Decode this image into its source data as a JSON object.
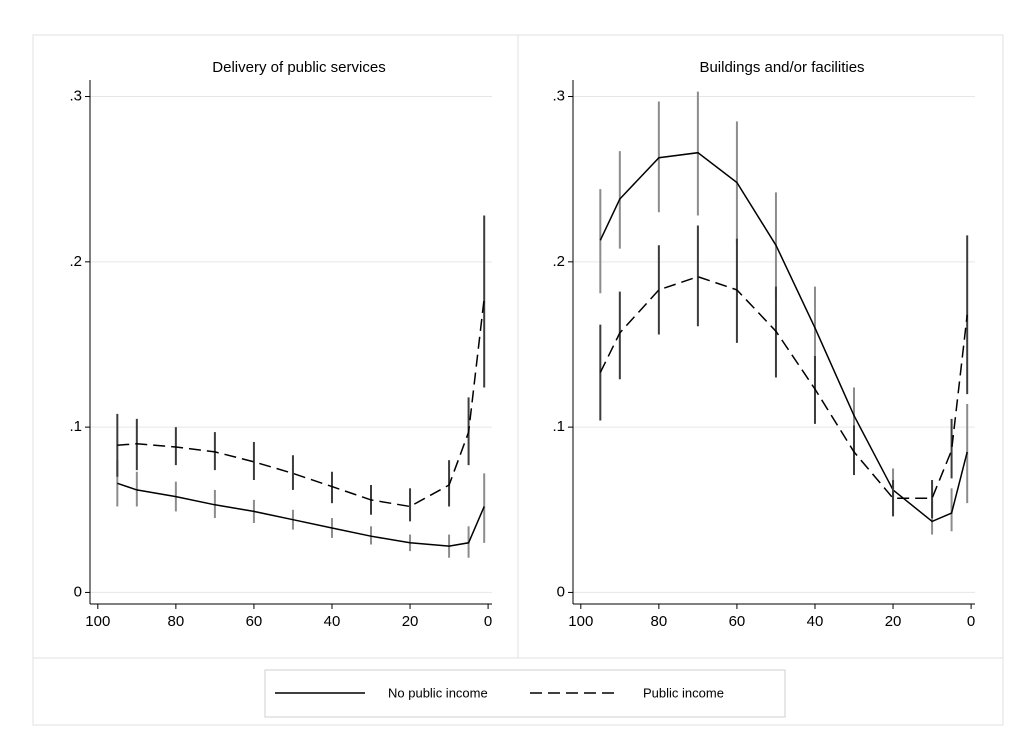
{
  "chart_data": [
    {
      "type": "line",
      "title": "Delivery of public services",
      "x": [
        95,
        90,
        80,
        70,
        60,
        50,
        40,
        30,
        20,
        10,
        5,
        1
      ],
      "xlim": [
        102,
        -1
      ],
      "xticks": [
        100,
        80,
        60,
        40,
        20,
        0
      ],
      "ylim": [
        -0.007,
        0.31
      ],
      "yticks": [
        0,
        {
          "value": 0.1,
          "label": ".1"
        },
        {
          "value": 0.2,
          "label": ".2"
        },
        {
          "value": 0.3,
          "label": ".3"
        }
      ],
      "grid": true,
      "series": [
        {
          "name": "No public income",
          "color": "#000000",
          "line_style": "solid",
          "bar_color": "#8c8c8c",
          "values": [
            0.066,
            0.062,
            0.058,
            0.053,
            0.049,
            0.044,
            0.039,
            0.034,
            0.03,
            0.028,
            0.03,
            0.052
          ],
          "lower": [
            0.052,
            0.052,
            0.049,
            0.045,
            0.042,
            0.038,
            0.033,
            0.029,
            0.025,
            0.021,
            0.021,
            0.03
          ],
          "upper": [
            0.08,
            0.073,
            0.067,
            0.062,
            0.056,
            0.05,
            0.045,
            0.04,
            0.035,
            0.035,
            0.04,
            0.072
          ]
        },
        {
          "name": "Public income",
          "color": "#000000",
          "line_style": "dashed",
          "bar_color": "#3c3c3c",
          "values": [
            0.089,
            0.09,
            0.088,
            0.085,
            0.079,
            0.072,
            0.064,
            0.056,
            0.052,
            0.065,
            0.097,
            0.178
          ],
          "lower": [
            0.07,
            0.074,
            0.077,
            0.074,
            0.068,
            0.062,
            0.054,
            0.047,
            0.043,
            0.052,
            0.077,
            0.124
          ],
          "upper": [
            0.108,
            0.105,
            0.1,
            0.097,
            0.091,
            0.083,
            0.073,
            0.065,
            0.063,
            0.08,
            0.118,
            0.228
          ]
        }
      ]
    },
    {
      "type": "line",
      "title": "Buildings and/or facilities",
      "x": [
        95,
        90,
        80,
        70,
        60,
        50,
        40,
        30,
        20,
        10,
        5,
        1
      ],
      "xlim": [
        102,
        -1
      ],
      "xticks": [
        100,
        80,
        60,
        40,
        20,
        0
      ],
      "ylim": [
        -0.007,
        0.31
      ],
      "yticks": [
        0,
        {
          "value": 0.1,
          "label": ".1"
        },
        {
          "value": 0.2,
          "label": ".2"
        },
        {
          "value": 0.3,
          "label": ".3"
        }
      ],
      "grid": true,
      "series": [
        {
          "name": "No public income",
          "color": "#000000",
          "line_style": "solid",
          "bar_color": "#8c8c8c",
          "values": [
            0.213,
            0.238,
            0.263,
            0.266,
            0.248,
            0.21,
            0.16,
            0.107,
            0.062,
            0.043,
            0.048,
            0.085
          ],
          "lower": [
            0.181,
            0.208,
            0.23,
            0.228,
            0.211,
            0.178,
            0.135,
            0.09,
            0.047,
            0.035,
            0.037,
            0.054
          ],
          "upper": [
            0.244,
            0.267,
            0.297,
            0.303,
            0.285,
            0.242,
            0.185,
            0.124,
            0.075,
            0.055,
            0.063,
            0.114
          ]
        },
        {
          "name": "Public income",
          "color": "#000000",
          "line_style": "dashed",
          "bar_color": "#3c3c3c",
          "values": [
            0.133,
            0.157,
            0.183,
            0.191,
            0.183,
            0.158,
            0.123,
            0.085,
            0.057,
            0.057,
            0.086,
            0.168
          ],
          "lower": [
            0.104,
            0.129,
            0.156,
            0.161,
            0.151,
            0.13,
            0.102,
            0.071,
            0.046,
            0.045,
            0.069,
            0.12
          ],
          "upper": [
            0.162,
            0.182,
            0.21,
            0.222,
            0.214,
            0.185,
            0.143,
            0.101,
            0.068,
            0.068,
            0.105,
            0.216
          ]
        }
      ]
    }
  ]
}
